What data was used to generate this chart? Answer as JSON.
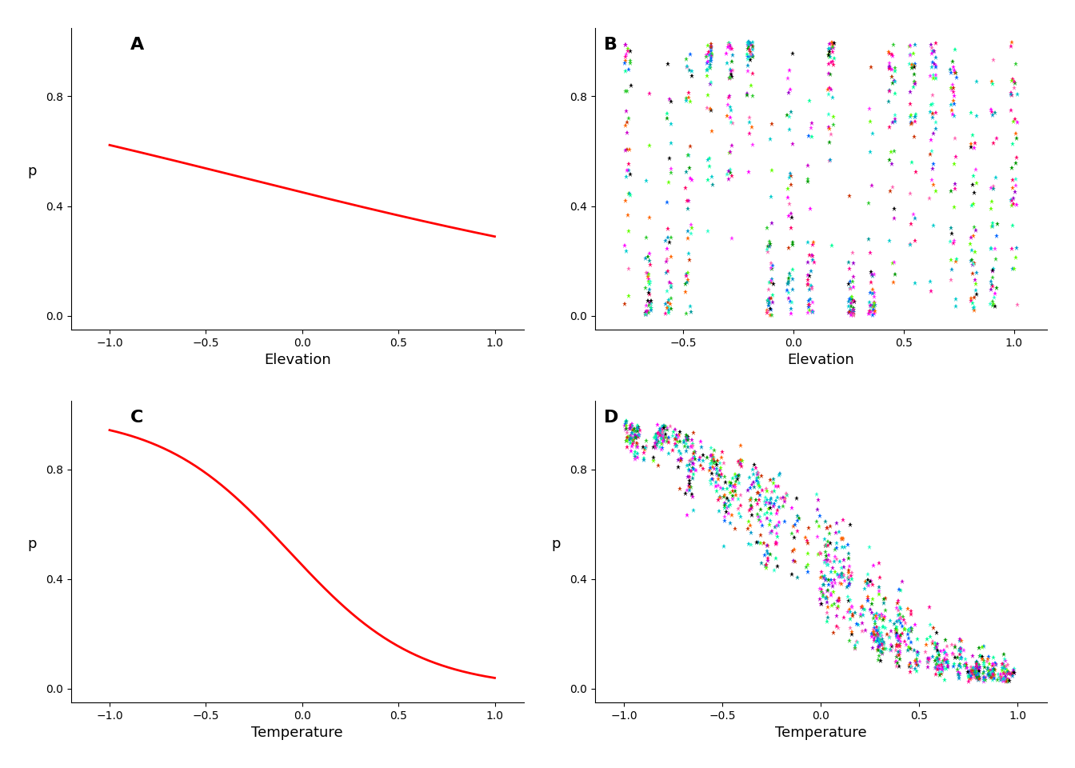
{
  "alpha": -0.2,
  "beta_elev": -0.7,
  "beta_temp": -3.0,
  "panel_labels": [
    "A",
    "B",
    "C",
    "D"
  ],
  "xlabel_A": "Elevation",
  "xlabel_B": "Elevation",
  "xlabel_C": "Temperature",
  "xlabel_D": "Temperature",
  "ylabel": "p",
  "line_color": "#FF0000",
  "line_width": 2.0,
  "marker": "*",
  "marker_size": 5,
  "ylim": [
    -0.05,
    1.05
  ],
  "yticks": [
    0.0,
    0.4,
    0.8
  ],
  "xticks_A": [
    -1.0,
    -0.5,
    0.0,
    0.5,
    1.0
  ],
  "xticks_B": [
    -0.5,
    0.0,
    0.5,
    1.0
  ],
  "xticks_CD": [
    -1.0,
    -0.5,
    0.0,
    0.5,
    1.0
  ],
  "background": "#FFFFFF",
  "label_fontsize": 13,
  "tick_fontsize": 10,
  "panel_label_fontsize": 16
}
